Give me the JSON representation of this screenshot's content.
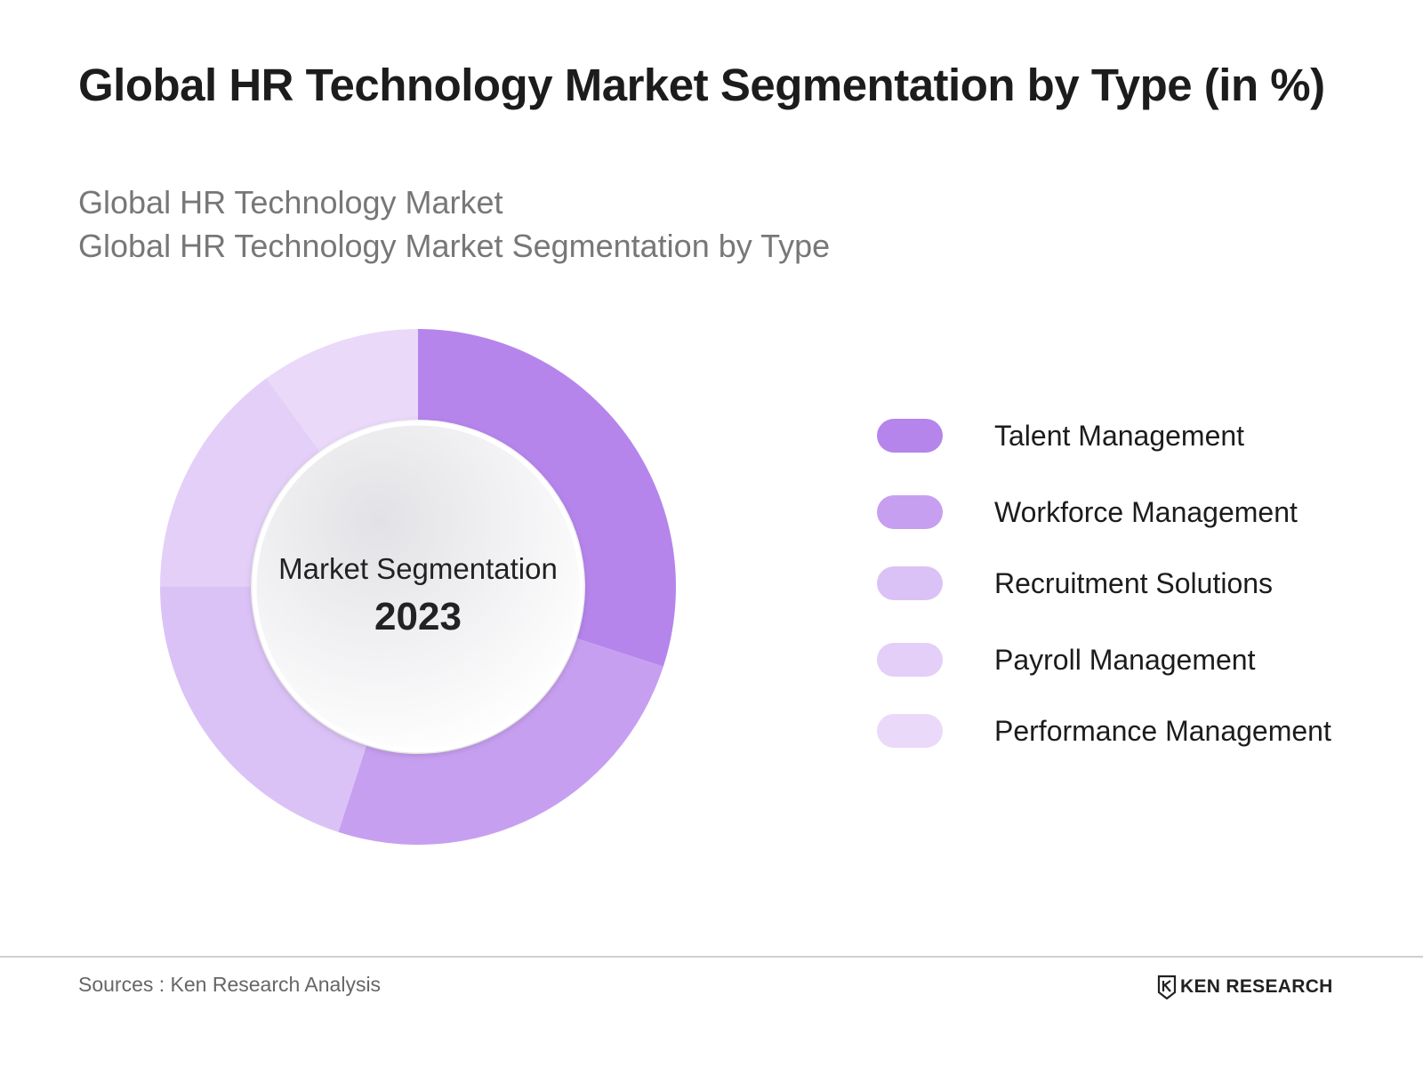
{
  "header": {
    "title": "Global HR Technology Market Segmentation by Type (in %)",
    "subtitle_1": "Global HR Technology Market",
    "subtitle_2": "Global HR Technology Market Segmentation by Type"
  },
  "chart_data": {
    "type": "pie",
    "variant": "donut",
    "categories": [
      "Talent Management",
      "Workforce Management",
      "Recruitment Solutions",
      "Payroll Management",
      "Performance Management"
    ],
    "values": [
      30,
      25,
      20,
      15,
      10
    ],
    "colors": [
      "#b585ec",
      "#c79ff0",
      "#dbc2f6",
      "#e3cff7",
      "#ead9f9"
    ],
    "center_label": "Market Segmentation",
    "center_year": "2023",
    "legend_position": "right"
  },
  "footer": {
    "source": "Sources : Ken Research Analysis",
    "logo_text": "KEN RESEARCH"
  }
}
